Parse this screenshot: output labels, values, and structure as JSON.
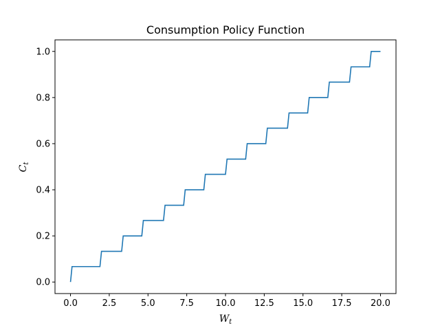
{
  "chart_data": {
    "type": "line",
    "title": "Consumption Policy Function",
    "xlabel": {
      "base": "W",
      "sub": "t"
    },
    "ylabel": {
      "base": "C",
      "sub": "t"
    },
    "xlim": [
      -1,
      21
    ],
    "ylim": [
      -0.05,
      1.05
    ],
    "xticks": [
      0.0,
      2.5,
      5.0,
      7.5,
      10.0,
      12.5,
      15.0,
      17.5,
      20.0
    ],
    "xtick_labels": [
      "0.0",
      "2.5",
      "5.0",
      "7.5",
      "10.0",
      "12.5",
      "15.0",
      "17.5",
      "20.0"
    ],
    "yticks": [
      0.0,
      0.2,
      0.4,
      0.6,
      0.8,
      1.0
    ],
    "ytick_labels": [
      "0.0",
      "0.2",
      "0.4",
      "0.6",
      "0.8",
      "1.0"
    ],
    "grid": false,
    "line_color": "#1f77b4",
    "series": [
      {
        "x": [
          0.0,
          0.1,
          1.9,
          2.0,
          3.3,
          3.4,
          4.6,
          4.7,
          6.0,
          6.1,
          7.3,
          7.4,
          8.6,
          8.7,
          10.0,
          10.1,
          11.3,
          11.4,
          12.6,
          12.7,
          14.0,
          14.1,
          15.3,
          15.4,
          16.6,
          16.7,
          18.0,
          18.1,
          19.3,
          19.4,
          20.0
        ],
        "y": [
          0.0,
          0.067,
          0.067,
          0.133,
          0.133,
          0.2,
          0.2,
          0.267,
          0.267,
          0.333,
          0.333,
          0.4,
          0.4,
          0.467,
          0.467,
          0.533,
          0.533,
          0.6,
          0.6,
          0.667,
          0.667,
          0.733,
          0.733,
          0.8,
          0.8,
          0.867,
          0.867,
          0.933,
          0.933,
          1.0,
          1.0
        ]
      }
    ]
  }
}
